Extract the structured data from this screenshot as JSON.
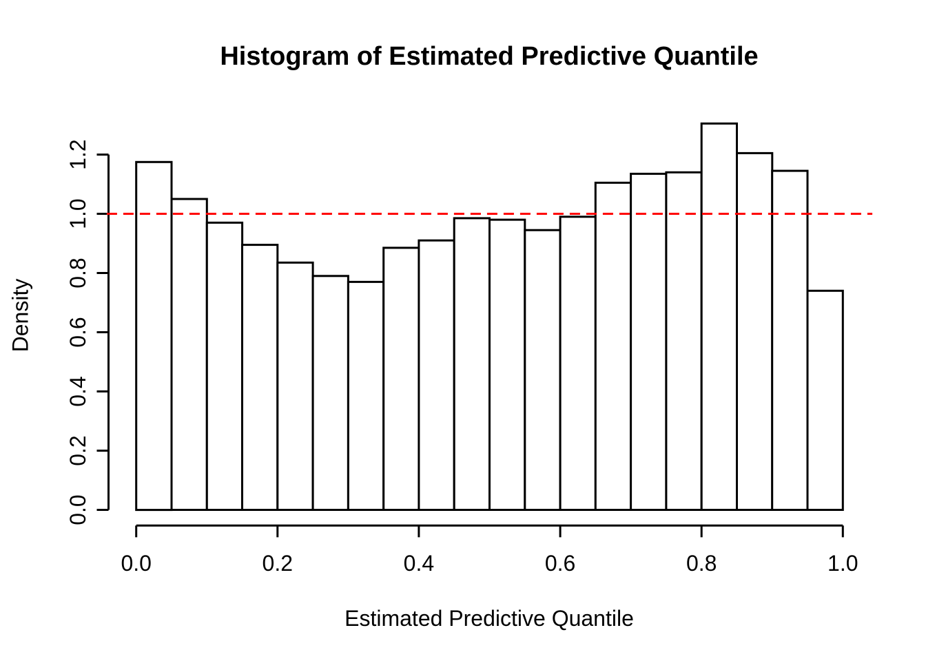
{
  "figure": {
    "title": "Histogram of Estimated Predictive Quantile",
    "xlabel": "Estimated Predictive Quantile",
    "ylabel": "Density"
  },
  "chart_data": {
    "type": "bar",
    "subtype": "histogram",
    "title": "Histogram of Estimated Predictive Quantile",
    "xlabel": "Estimated Predictive Quantile",
    "ylabel": "Density",
    "n_bins": 20,
    "bin_width": 0.05,
    "bin_edges": [
      0.0,
      0.05,
      0.1,
      0.15,
      0.2,
      0.25,
      0.3,
      0.35,
      0.4,
      0.45,
      0.5,
      0.55,
      0.6,
      0.65,
      0.7,
      0.75,
      0.8,
      0.85,
      0.9,
      0.95,
      1.0
    ],
    "densities": [
      1.175,
      1.05,
      0.97,
      0.895,
      0.835,
      0.79,
      0.77,
      0.885,
      0.91,
      0.985,
      0.98,
      0.945,
      0.99,
      1.105,
      1.135,
      1.14,
      1.305,
      1.205,
      1.145,
      0.74
    ],
    "xlim": [
      0.0,
      1.0
    ],
    "ylim": [
      0.0,
      1.32
    ],
    "x_tick_labels": [
      "0.0",
      "0.2",
      "0.4",
      "0.6",
      "0.8",
      "1.0"
    ],
    "x_tick_values": [
      0.0,
      0.2,
      0.4,
      0.6,
      0.8,
      1.0
    ],
    "y_tick_labels": [
      "0.0",
      "0.2",
      "0.4",
      "0.6",
      "0.8",
      "1.0",
      "1.2"
    ],
    "y_tick_values": [
      0.0,
      0.2,
      0.4,
      0.6,
      0.8,
      1.0,
      1.2
    ],
    "grid": false,
    "legend": "none",
    "bar_fill": "#ffffff",
    "bar_stroke": "#000000",
    "axis_color": "#000000",
    "text_color": "#000000",
    "reference_line": {
      "y": 1.0,
      "color": "#ff0000",
      "style": "dashed"
    }
  }
}
